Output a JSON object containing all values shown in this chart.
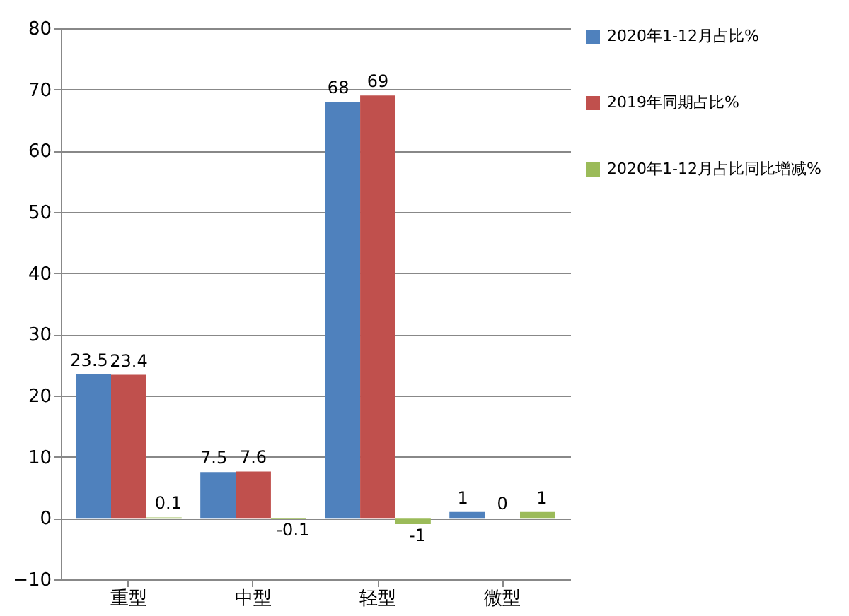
{
  "chart_data": {
    "type": "bar",
    "categories": [
      "重型",
      "中型",
      "轻型",
      "微型"
    ],
    "series": [
      {
        "name": "2020年1-12月占比%",
        "color": "#4f81bd",
        "values": [
          23.5,
          7.5,
          68,
          1
        ]
      },
      {
        "name": "2019年同期占比%",
        "color": "#c0504d",
        "values": [
          23.4,
          7.6,
          69,
          0
        ]
      },
      {
        "name": "2020年1-12月占比同比增减%",
        "color": "#9bbb59",
        "values": [
          0.1,
          -0.1,
          -1,
          1
        ]
      }
    ],
    "ylim": [
      -10,
      80
    ],
    "yticks": [
      -10,
      0,
      10,
      20,
      30,
      40,
      50,
      60,
      70,
      80
    ],
    "grid": "y",
    "legend": "right",
    "data_labels": true
  }
}
